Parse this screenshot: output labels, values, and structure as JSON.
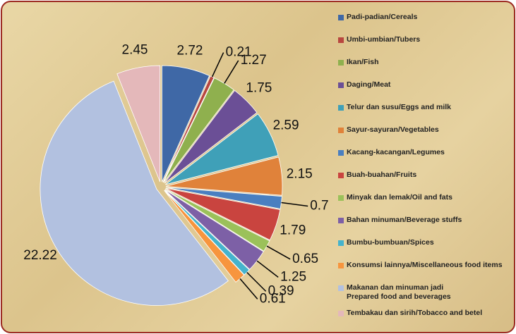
{
  "chart_data": {
    "type": "pie",
    "categories": [
      "Padi-padian/Cereals",
      "Umbi-umbian/Tubers",
      "Ikan/Fish",
      "Daging/Meat",
      "Telur dan susu/Eggs and milk",
      "Sayur-sayuran/Vegetables",
      "Kacang-kacangan/Legumes",
      "Buah-buahan/Fruits",
      "Minyak dan lemak/Oil and fats",
      "Bahan minuman/Beverage stuffs",
      "Bumbu-bumbuan/Spices",
      "Konsumsi lainnya/Miscellaneous food items",
      "Makanan dan minuman jadi\nPrepared food and beverages",
      "Tembakau dan sirih/Tobacco and betel"
    ],
    "values": [
      2.72,
      0.21,
      1.27,
      1.75,
      2.59,
      2.15,
      0.7,
      1.79,
      0.65,
      1.25,
      0.39,
      0.61,
      22.22,
      2.45
    ],
    "colors": [
      "#3f68a6",
      "#b8473f",
      "#8fb04e",
      "#6b4f96",
      "#3fa0b8",
      "#e0823a",
      "#4a7fc0",
      "#c9443f",
      "#9bc15a",
      "#7d60a6",
      "#45b3cc",
      "#f7953e",
      "#b2c1e0",
      "#e4b8ba"
    ],
    "legend": "right"
  }
}
